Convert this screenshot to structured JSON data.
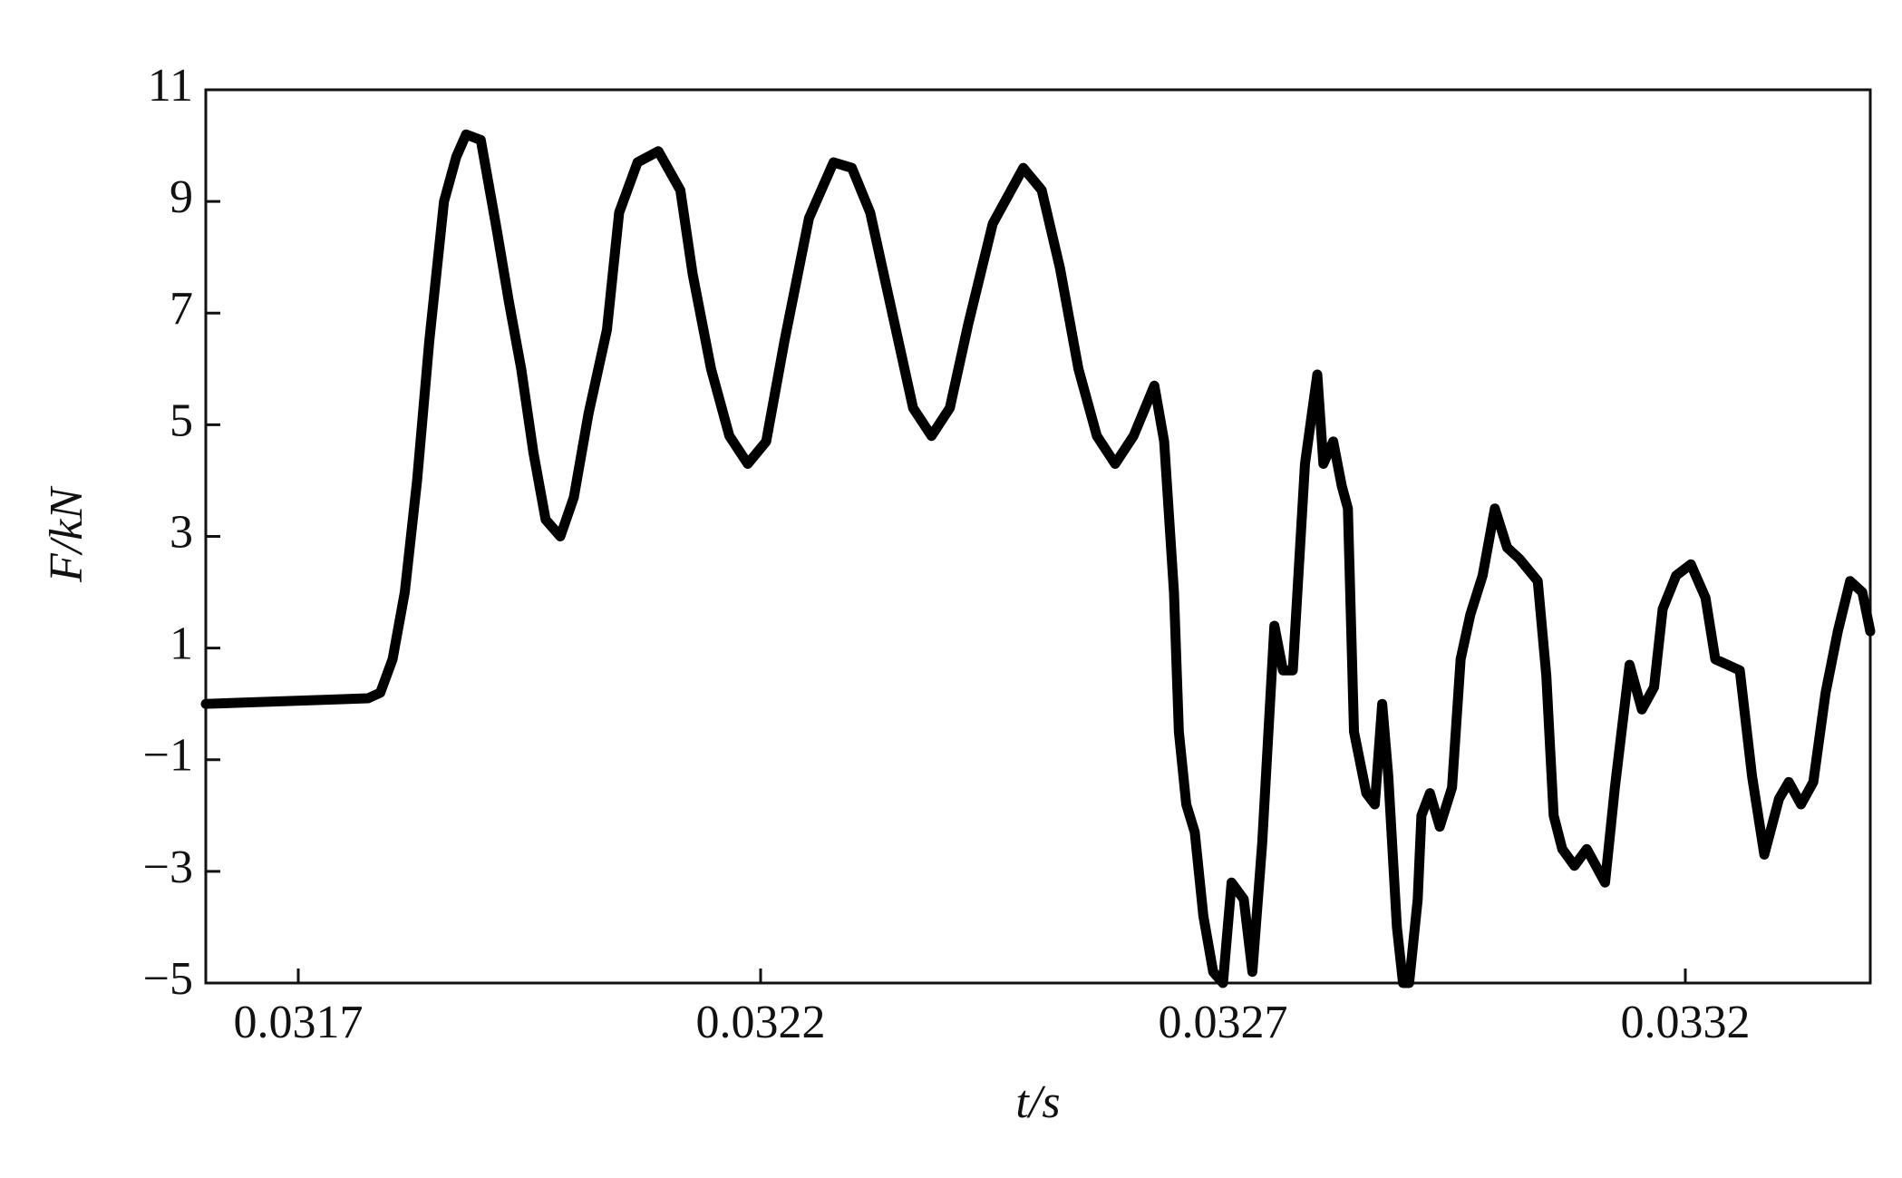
{
  "chart_data": {
    "type": "line",
    "x_label": "t/s",
    "y_label": "F/kN",
    "x": [
      0.0316,
      0.0317755,
      0.0317887,
      0.031802,
      0.0318152,
      0.0318285,
      0.0318417,
      0.0318576,
      0.0318709,
      0.0318815,
      0.0318974,
      0.0319146,
      0.0319278,
      0.0319411,
      0.0319543,
      0.0319675,
      0.0319834,
      0.031998,
      0.0320139,
      0.0320338,
      0.032047,
      0.0320669,
      0.0320894,
      0.0321132,
      0.0321265,
      0.0321464,
      0.0321662,
      0.0321861,
      0.032206,
      0.0322258,
      0.0322523,
      0.0322788,
      0.0322987,
      0.0323185,
      0.032345,
      0.0323649,
      0.0323848,
      0.0324046,
      0.0324245,
      0.032451,
      0.0324841,
      0.032504,
      0.0325238,
      0.0325437,
      0.0325636,
      0.0325834,
      0.0326033,
      0.0326258,
      0.0326364,
      0.032647,
      0.0326523,
      0.0326603,
      0.0326695,
      0.0326788,
      0.0326894,
      0.0327,
      0.0327093,
      0.0327225,
      0.0327318,
      0.0327424,
      0.0327556,
      0.0327649,
      0.0327755,
      0.0327887,
      0.032802,
      0.0328086,
      0.0328192,
      0.0328285,
      0.0328351,
      0.0328417,
      0.032855,
      0.0328642,
      0.0328722,
      0.0328788,
      0.0328881,
      0.0328947,
      0.0329013,
      0.0329106,
      0.0329146,
      0.0329238,
      0.0329344,
      0.0329477,
      0.032957,
      0.0329675,
      0.0329808,
      0.032994,
      0.0330073,
      0.0330205,
      0.0330404,
      0.0330497,
      0.0330576,
      0.0330669,
      0.0330801,
      0.0330934,
      0.0331132,
      0.0331238,
      0.0331397,
      0.033153,
      0.0331662,
      0.0331755,
      0.0331901,
      0.033206,
      0.0332218,
      0.0332324,
      0.0332457,
      0.0332589,
      0.0332722,
      0.0332854,
      0.0333013,
      0.0333119,
      0.0333251,
      0.0333384,
      0.0333517,
      0.0333649,
      0.0333782,
      0.0333914,
      0.0334
    ],
    "series": [
      {
        "color": "#000000",
        "values": [
          0.0,
          0.1,
          0.2,
          0.8,
          2,
          4,
          6.5,
          9,
          9.8,
          10.2,
          10.1,
          8.5,
          7.2,
          6,
          4.5,
          3.3,
          3.0,
          3.7,
          5.2,
          6.7,
          8.8,
          9.7,
          9.9,
          9.2,
          7.7,
          6,
          4.8,
          4.3,
          4.7,
          6.5,
          8.7,
          9.7,
          9.6,
          8.8,
          6.8,
          5.3,
          4.8,
          5.3,
          6.8,
          8.6,
          9.6,
          9.2,
          7.8,
          6,
          4.8,
          4.3,
          4.8,
          5.7,
          4.7,
          2,
          -0.5,
          -1.8,
          -2.3,
          -3.8,
          -4.8,
          -5,
          -3.2,
          -3.5,
          -4.8,
          -2.5,
          1.4,
          0.6,
          0.6,
          4.3,
          5.9,
          4.3,
          4.7,
          3.9,
          3.5,
          -0.5,
          -1.6,
          -1.8,
          0.0,
          -1.3,
          -4,
          -5,
          -5,
          -3.5,
          -2,
          -1.6,
          -2.2,
          -1.5,
          0.8,
          1.6,
          2.3,
          3.5,
          2.8,
          2.6,
          2.2,
          0.5,
          -2,
          -2.6,
          -2.9,
          -2.6,
          -3.2,
          -1.5,
          0.7,
          -0.1,
          0.3,
          1.7,
          2.3,
          2.5,
          1.9,
          0.8,
          0.7,
          0.6,
          -1.3,
          -2.7,
          -1.7,
          -1.4,
          -1.8,
          -1.4,
          0.2,
          1.3,
          2.2,
          2,
          1.3
        ]
      }
    ],
    "xlim": [
      0.0316,
      0.0334
    ],
    "xticks": [
      0.0317,
      0.0322,
      0.0327,
      0.0332
    ],
    "ylim": [
      -5,
      11
    ],
    "yticks": [
      {
        "value": -5,
        "label": "−5"
      },
      {
        "value": -3,
        "label": "−3"
      },
      {
        "value": -1,
        "label": "−1"
      },
      1,
      3,
      5,
      7,
      9,
      11
    ],
    "grid": false
  }
}
